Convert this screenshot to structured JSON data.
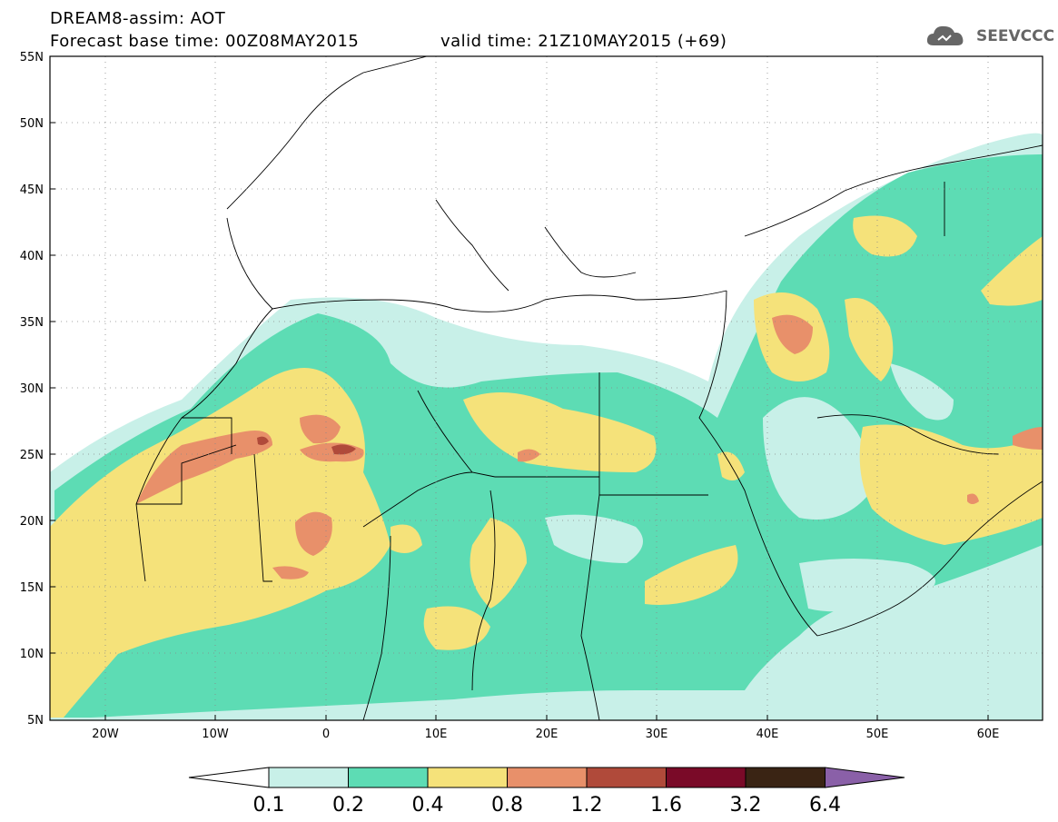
{
  "header": {
    "title": "DREAM8-assim: AOT",
    "base_time": "Forecast base time: 00Z08MAY2015",
    "valid_time": "valid time: 21Z10MAY2015 (+69)",
    "logo_text": "SEEVCCC"
  },
  "map": {
    "lon_range": [
      -25,
      65
    ],
    "lat_range": [
      5,
      55
    ],
    "lat_labels": [
      "55N",
      "50N",
      "45N",
      "40N",
      "35N",
      "30N",
      "25N",
      "20N",
      "15N",
      "10N",
      "5N"
    ],
    "lon_labels": [
      "20W",
      "10W",
      "0",
      "10E",
      "20E",
      "30E",
      "40E",
      "50E",
      "60E"
    ],
    "grid": "dotted"
  },
  "colorbar": {
    "labels": [
      "0.1",
      "0.2",
      "0.4",
      "0.8",
      "1.2",
      "1.6",
      "3.2",
      "6.4"
    ],
    "colors": [
      "#c8f0e8",
      "#5ddcb4",
      "#f5e27a",
      "#e8906a",
      "#b04a3a",
      "#7a0a28",
      "#3a2414",
      "#8a60a8"
    ]
  },
  "colors": {
    "land": "#ffffff",
    "border": "#000000"
  }
}
